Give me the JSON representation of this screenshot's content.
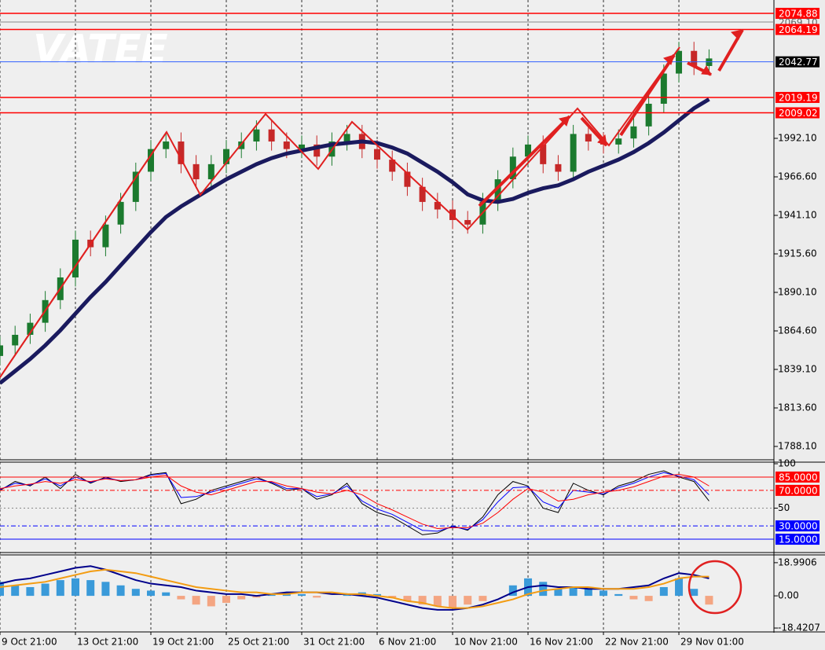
{
  "watermark": "VATEE",
  "chart_data": [
    {
      "type": "candlestick",
      "xlim": [
        0,
        51.3
      ],
      "xticks": [
        {
          "value": 0,
          "label": "9 Oct 21:00"
        },
        {
          "value": 5,
          "label": "13 Oct 21:00"
        },
        {
          "value": 10,
          "label": "19 Oct 21:00"
        },
        {
          "value": 15,
          "label": "25 Oct 21:00"
        },
        {
          "value": 20,
          "label": "31 Oct 21:00"
        },
        {
          "value": 25,
          "label": "6 Nov 21:00"
        },
        {
          "value": 30,
          "label": "10 Nov 21:00"
        },
        {
          "value": 35,
          "label": "16 Nov 21:00"
        },
        {
          "value": 40,
          "label": "22 Nov 21:00"
        },
        {
          "value": 45,
          "label": "29 Nov 01:00"
        }
      ],
      "ylim": [
        1779.25,
        2083.7
      ],
      "yticks": [
        {
          "value": 1992.1,
          "label": "1992.10"
        },
        {
          "value": 1966.6,
          "label": "1966.60"
        },
        {
          "value": 1941.1,
          "label": "1941.10"
        },
        {
          "value": 1915.6,
          "label": "1915.60"
        },
        {
          "value": 1890.1,
          "label": "1890.10"
        },
        {
          "value": 1864.6,
          "label": "1864.60"
        },
        {
          "value": 1839.1,
          "label": "1839.10"
        },
        {
          "value": 1813.6,
          "label": "1813.60"
        },
        {
          "value": 1788.1,
          "label": "1788.10"
        }
      ],
      "grid": true,
      "open": [
        1848,
        1855,
        1862,
        1870,
        1885,
        1900,
        1925,
        1920,
        1935,
        1950,
        1970,
        1985,
        1990,
        1975,
        1965,
        1975,
        1985,
        1990,
        1998,
        1990,
        1985,
        1988,
        1980,
        1990,
        1995,
        1985,
        1978,
        1970,
        1960,
        1950,
        1945,
        1938,
        1935,
        1950,
        1965,
        1980,
        1988,
        1975,
        1970,
        1995,
        1990,
        1988,
        1992,
        2000,
        2015,
        2035,
        2050,
        2040
      ],
      "high": [
        1861,
        1868,
        1876,
        1891,
        1906,
        1931,
        1931,
        1941,
        1956,
        1976,
        1991,
        1996,
        1996,
        1981,
        1981,
        1991,
        1996,
        2004,
        2004,
        1996,
        1994,
        1994,
        1996,
        2001,
        2001,
        1991,
        1984,
        1976,
        1966,
        1956,
        1951,
        1944,
        1956,
        1971,
        1986,
        1994,
        1994,
        1981,
        2001,
        2001,
        1996,
        1998,
        2006,
        2021,
        2041,
        2056,
        2056,
        2051
      ],
      "low": [
        1842,
        1849,
        1856,
        1864,
        1879,
        1894,
        1914,
        1914,
        1929,
        1944,
        1964,
        1979,
        1969,
        1959,
        1959,
        1969,
        1979,
        1984,
        1984,
        1979,
        1979,
        1974,
        1974,
        1984,
        1979,
        1972,
        1964,
        1954,
        1944,
        1939,
        1932,
        1929,
        1929,
        1944,
        1959,
        1974,
        1969,
        1964,
        1964,
        1984,
        1982,
        1982,
        1986,
        1994,
        2009,
        2029,
        2034,
        2034
      ],
      "close": [
        1855,
        1862,
        1870,
        1885,
        1900,
        1925,
        1920,
        1935,
        1950,
        1970,
        1985,
        1990,
        1975,
        1965,
        1975,
        1985,
        1990,
        1998,
        1990,
        1985,
        1988,
        1980,
        1990,
        1995,
        1985,
        1978,
        1970,
        1960,
        1950,
        1945,
        1938,
        1935,
        1950,
        1965,
        1980,
        1988,
        1975,
        1970,
        1995,
        1990,
        1988,
        1992,
        2000,
        2015,
        2035,
        2050,
        2040,
        2045
      ],
      "up_color": "#1b7a2e",
      "down_color": "#c62828",
      "series": [
        {
          "color": "#1a1a5e",
          "values": [
            1830,
            1838,
            1846,
            1855,
            1865,
            1876,
            1887,
            1897,
            1908,
            1919,
            1930,
            1940,
            1947,
            1953,
            1959,
            1965,
            1970,
            1975,
            1979,
            1982,
            1984,
            1986,
            1988,
            1989,
            1990,
            1989,
            1986,
            1982,
            1976,
            1970,
            1963,
            1955,
            1951,
            1950,
            1952,
            1956,
            1959,
            1961,
            1965,
            1970,
            1974,
            1978,
            1983,
            1989,
            1996,
            2004,
            2012,
            2018
          ]
        }
      ],
      "levels": [
        {
          "value": 2074.88,
          "color": "#ff0000"
        },
        {
          "value": {
            "value": 2069.1,
            "label": "2069.10"
          },
          "color": "#888888"
        },
        {
          "value": 2064.19,
          "color": "#ff0000"
        },
        {
          "value": 2042.77,
          "color": "#3060ff",
          "box": "#000000"
        },
        {
          "value": 2019.19,
          "color": "#ff0000"
        },
        {
          "value": 2009.02,
          "color": "#ff0000"
        }
      ]
    },
    {
      "type": "line",
      "ylim": [
        0,
        100
      ],
      "yticks": [
        100,
        50
      ],
      "series": [
        {
          "color": "#000000",
          "values": [
            70,
            80,
            75,
            85,
            72,
            88,
            78,
            85,
            80,
            82,
            88,
            90,
            55,
            60,
            70,
            75,
            80,
            85,
            78,
            70,
            72,
            60,
            65,
            78,
            55,
            45,
            40,
            30,
            20,
            22,
            30,
            25,
            40,
            65,
            80,
            75,
            50,
            45,
            78,
            70,
            65,
            75,
            80,
            88,
            92,
            85,
            80,
            58
          ]
        },
        {
          "color": "#0000ff",
          "values": [
            71,
            78,
            76,
            83,
            75,
            85,
            79,
            84,
            81,
            82,
            87,
            89,
            62,
            63,
            68,
            73,
            78,
            83,
            79,
            72,
            72,
            63,
            66,
            75,
            58,
            49,
            43,
            34,
            25,
            24,
            29,
            26,
            37,
            57,
            73,
            74,
            57,
            50,
            70,
            68,
            66,
            73,
            78,
            85,
            90,
            86,
            82,
            65
          ]
        },
        {
          "color": "#ff0000",
          "values": [
            72,
            75,
            77,
            80,
            78,
            82,
            80,
            83,
            81,
            82,
            85,
            87,
            75,
            68,
            65,
            70,
            75,
            80,
            80,
            75,
            72,
            68,
            66,
            70,
            65,
            55,
            48,
            40,
            32,
            27,
            28,
            28,
            33,
            45,
            60,
            72,
            68,
            58,
            60,
            65,
            68,
            70,
            74,
            80,
            86,
            88,
            85,
            75
          ]
        }
      ],
      "levels": [
        {
          "value": {
            "value": 85,
            "label": "85.0000"
          },
          "color": "#ff0000"
        },
        {
          "value": {
            "value": 70,
            "label": "70.0000"
          },
          "color": "#ff0000",
          "dash": true
        },
        {
          "value": {
            "value": 30,
            "label": "30.0000"
          },
          "color": "#0000ff",
          "dash": true
        },
        {
          "value": {
            "value": 15,
            "label": "15.0000"
          },
          "color": "#0000ff"
        }
      ]
    },
    {
      "type": "macd",
      "ylim": [
        -20.2,
        23.44
      ],
      "yticks": [
        18.9906,
        {
          "value": 0,
          "label": "0.00"
        },
        -18.4207
      ],
      "pos_color": "#3a9ad9",
      "neg_color": "#f4a582",
      "values": [
        8,
        6,
        5,
        7,
        9,
        10,
        9,
        8,
        6,
        4,
        3,
        2,
        -2,
        -5,
        -6,
        -4,
        -2,
        -1,
        1,
        2,
        1,
        -1,
        0,
        1,
        2,
        1,
        -1,
        -3,
        -5,
        -6,
        -7,
        -5,
        -3,
        0,
        6,
        10,
        8,
        4,
        5,
        4,
        3,
        1,
        -2,
        -3,
        5,
        10,
        4,
        -5
      ],
      "series": [
        {
          "color": "#00008b",
          "values": [
            7,
            9,
            10,
            12,
            14,
            16,
            17,
            15,
            12,
            9,
            7,
            6,
            5,
            3,
            2,
            1,
            1,
            0,
            1,
            2,
            2,
            2,
            1,
            1,
            0,
            -1,
            -3,
            -5,
            -7,
            -8,
            -8,
            -7,
            -5,
            -2,
            2,
            5,
            6,
            5,
            5,
            4,
            4,
            4,
            5,
            6,
            10,
            13,
            12,
            10
          ]
        },
        {
          "color": "#f39c12",
          "values": [
            5,
            6,
            7,
            8,
            10,
            12,
            14,
            15,
            14,
            13,
            11,
            9,
            7,
            5,
            4,
            3,
            2,
            2,
            1,
            1,
            2,
            2,
            2,
            1,
            1,
            0,
            -1,
            -3,
            -4,
            -6,
            -7,
            -7,
            -6,
            -4,
            -2,
            1,
            3,
            4,
            5,
            5,
            4,
            4,
            4,
            5,
            7,
            10,
            11,
            11
          ]
        }
      ]
    }
  ]
}
